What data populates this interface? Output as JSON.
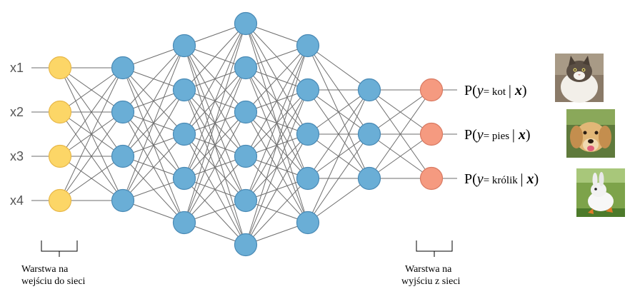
{
  "diagram": {
    "inputs": [
      "x1",
      "x2",
      "x3",
      "x4"
    ],
    "layers": [
      4,
      4,
      5,
      6,
      5,
      3,
      3
    ],
    "outputs": [
      {
        "prefix": "P(",
        "var": "y",
        "eq": "=",
        "label": "kot",
        "sep": "|",
        "given": "x",
        "suffix": ")",
        "image": "cat-photo"
      },
      {
        "prefix": "P(",
        "var": "y",
        "eq": "=",
        "label": "pies",
        "sep": "|",
        "given": "x",
        "suffix": ")",
        "image": "dog-photo"
      },
      {
        "prefix": "P(",
        "var": "y",
        "eq": "=",
        "label": "królik",
        "sep": "|",
        "given": "x",
        "suffix": ")",
        "image": "rabbit-photo"
      }
    ],
    "captions": {
      "input_layer": [
        "Warstwa na",
        "wejściu do sieci"
      ],
      "output_layer": [
        "Warstwa na",
        "wyjściu z sieci"
      ]
    },
    "colors": {
      "input_node": "#fcd667",
      "input_stroke": "#e8b84a",
      "hidden_node": "#6aaed6",
      "hidden_stroke": "#4a8ab5",
      "output_node": "#f59a80",
      "output_stroke": "#d97a62",
      "edge": "#6e6e6e"
    }
  }
}
